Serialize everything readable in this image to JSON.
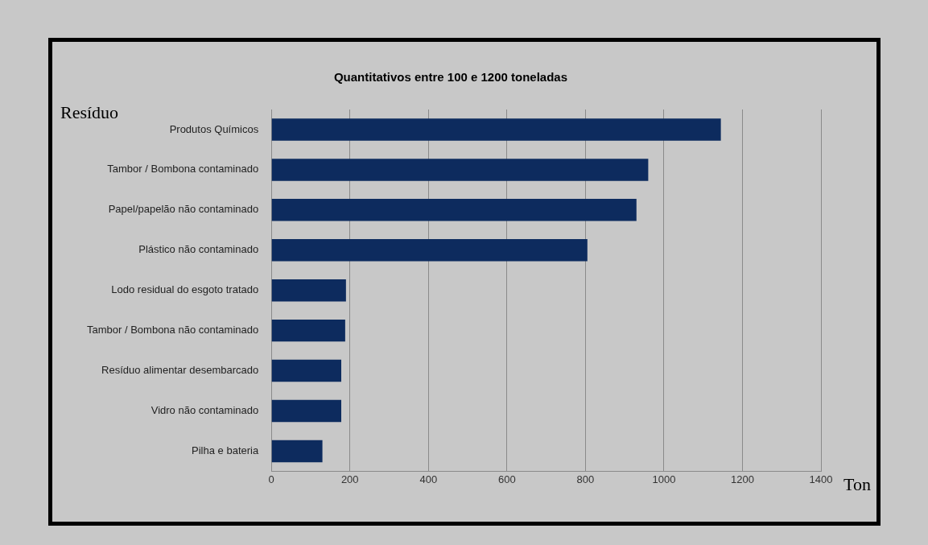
{
  "chart_data": {
    "type": "bar",
    "orientation": "horizontal",
    "title": "Quantitativos entre 100 e 1200 toneladas",
    "ylabel": "Resíduo",
    "xlabel": "Ton",
    "categories": [
      "Produtos Químicos",
      "Tambor / Bombona contaminado",
      "Papel/papelão não contaminado",
      "Plástico não contaminado",
      "Lodo residual do esgoto tratado",
      "Tambor / Bombona não contaminado",
      "Resíduo alimentar desembarcado",
      "Vidro não contaminado",
      "Pilha e bateria"
    ],
    "values": [
      1145,
      960,
      930,
      805,
      190,
      188,
      178,
      178,
      130
    ],
    "color": "#0d2b5e",
    "xlim": [
      0,
      1400
    ],
    "xticks": [
      0,
      200,
      400,
      600,
      800,
      1000,
      1200,
      1400
    ],
    "grid": "x"
  }
}
